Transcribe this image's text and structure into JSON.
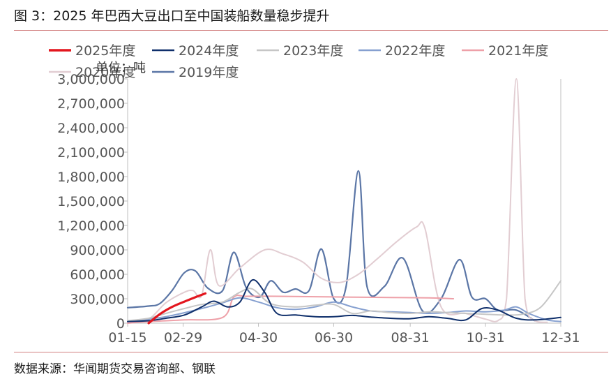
{
  "header": {
    "title": "图 3：2025 年巴西大豆出口至中国装船数量稳步提升"
  },
  "footer": {
    "source": "数据来源：华闻期货交易咨询部、钢联"
  },
  "chart_data": {
    "type": "line",
    "unit_label": "单位：吨",
    "x_ticks": [
      "01-15",
      "02-29",
      "04-30",
      "06-30",
      "08-31",
      "10-31",
      "12-31"
    ],
    "y_ticks": [
      "0",
      "300,000",
      "600,000",
      "900,000",
      "1,200,000",
      "1,500,000",
      "1,800,000",
      "2,100,000",
      "2,400,000",
      "2,700,000",
      "3,000,000"
    ],
    "ylim": [
      0,
      3000000
    ],
    "xlim": [
      "01-15",
      "12-31"
    ],
    "legend_position": "top",
    "grid": false,
    "series": [
      {
        "name": "2025年度",
        "color": "#e3161e",
        "width": 3.2,
        "points": [
          [
            "02-01",
            0
          ],
          [
            "02-10",
            110000
          ],
          [
            "02-20",
            200000
          ],
          [
            "03-01",
            265000
          ],
          [
            "03-10",
            320000
          ],
          [
            "03-18",
            365000
          ]
        ]
      },
      {
        "name": "2024年度",
        "color": "#0f2f6b",
        "width": 2,
        "points": [
          [
            "01-15",
            20000
          ],
          [
            "02-01",
            30000
          ],
          [
            "02-15",
            60000
          ],
          [
            "03-01",
            100000
          ],
          [
            "03-15",
            200000
          ],
          [
            "03-25",
            270000
          ],
          [
            "04-05",
            200000
          ],
          [
            "04-15",
            260000
          ],
          [
            "04-25",
            530000
          ],
          [
            "05-05",
            380000
          ],
          [
            "05-15",
            120000
          ],
          [
            "05-30",
            100000
          ],
          [
            "06-15",
            80000
          ],
          [
            "06-30",
            80000
          ],
          [
            "07-15",
            95000
          ],
          [
            "07-30",
            75000
          ],
          [
            "08-15",
            60000
          ],
          [
            "08-31",
            55000
          ],
          [
            "09-15",
            80000
          ],
          [
            "09-30",
            60000
          ],
          [
            "10-15",
            40000
          ],
          [
            "10-28",
            180000
          ],
          [
            "11-10",
            160000
          ],
          [
            "11-25",
            60000
          ],
          [
            "12-10",
            40000
          ],
          [
            "12-31",
            70000
          ]
        ]
      },
      {
        "name": "2023年度",
        "color": "#c6c6c6",
        "width": 2,
        "points": [
          [
            "01-15",
            30000
          ],
          [
            "02-01",
            60000
          ],
          [
            "02-15",
            120000
          ],
          [
            "03-01",
            180000
          ],
          [
            "03-15",
            230000
          ],
          [
            "04-01",
            260000
          ],
          [
            "04-15",
            380000
          ],
          [
            "04-25",
            420000
          ],
          [
            "05-10",
            240000
          ],
          [
            "05-30",
            200000
          ],
          [
            "06-15",
            220000
          ],
          [
            "06-30",
            230000
          ],
          [
            "07-15",
            120000
          ],
          [
            "07-30",
            150000
          ],
          [
            "08-15",
            130000
          ],
          [
            "08-31",
            120000
          ],
          [
            "09-15",
            140000
          ],
          [
            "09-30",
            130000
          ],
          [
            "10-15",
            120000
          ],
          [
            "10-31",
            110000
          ],
          [
            "11-15",
            100000
          ],
          [
            "11-30",
            110000
          ],
          [
            "12-15",
            200000
          ],
          [
            "12-31",
            520000
          ]
        ]
      },
      {
        "name": "2022年度",
        "color": "#86a0d0",
        "width": 2,
        "points": [
          [
            "01-15",
            20000
          ],
          [
            "02-15",
            80000
          ],
          [
            "03-15",
            180000
          ],
          [
            "04-01",
            250000
          ],
          [
            "04-15",
            310000
          ],
          [
            "04-30",
            260000
          ],
          [
            "05-15",
            190000
          ],
          [
            "05-30",
            170000
          ],
          [
            "06-15",
            200000
          ],
          [
            "06-30",
            260000
          ],
          [
            "07-15",
            200000
          ],
          [
            "07-30",
            150000
          ],
          [
            "08-15",
            140000
          ],
          [
            "08-31",
            130000
          ],
          [
            "09-15",
            120000
          ],
          [
            "09-30",
            130000
          ],
          [
            "10-15",
            150000
          ],
          [
            "10-31",
            140000
          ],
          [
            "11-15",
            160000
          ],
          [
            "11-25",
            200000
          ],
          [
            "12-05",
            120000
          ],
          [
            "12-20",
            40000
          ],
          [
            "12-31",
            20000
          ]
        ]
      },
      {
        "name": "2021年度",
        "color": "#eea0a8",
        "width": 2,
        "points": [
          [
            "01-15",
            0
          ],
          [
            "02-01",
            20000
          ],
          [
            "03-01",
            40000
          ],
          [
            "04-01",
            70000
          ],
          [
            "04-10",
            320000
          ],
          [
            "04-20",
            330000
          ],
          [
            "05-15",
            330000
          ],
          [
            "06-15",
            325000
          ],
          [
            "07-15",
            320000
          ],
          [
            "08-15",
            315000
          ],
          [
            "09-15",
            310000
          ],
          [
            "10-05",
            300000
          ]
        ]
      },
      {
        "name": "2020年度",
        "color": "#e2cdd2",
        "width": 2,
        "points": [
          [
            "01-15",
            0
          ],
          [
            "02-01",
            50000
          ],
          [
            "02-15",
            250000
          ],
          [
            "03-01",
            380000
          ],
          [
            "03-08",
            400000
          ],
          [
            "03-15",
            340000
          ],
          [
            "03-22",
            900000
          ],
          [
            "03-29",
            460000
          ],
          [
            "04-15",
            680000
          ],
          [
            "05-05",
            900000
          ],
          [
            "05-20",
            850000
          ],
          [
            "06-05",
            750000
          ],
          [
            "06-20",
            550000
          ],
          [
            "07-05",
            500000
          ],
          [
            "07-20",
            600000
          ],
          [
            "08-05",
            800000
          ],
          [
            "08-20",
            1000000
          ],
          [
            "09-05",
            1180000
          ],
          [
            "09-12",
            1160000
          ],
          [
            "09-25",
            200000
          ],
          [
            "10-15",
            120000
          ],
          [
            "10-31",
            50000
          ],
          [
            "11-10",
            30000
          ],
          [
            "11-17",
            300000
          ],
          [
            "11-25",
            3000000
          ],
          [
            "12-02",
            300000
          ],
          [
            "12-10",
            30000
          ],
          [
            "12-20",
            10000
          ]
        ]
      },
      {
        "name": "2019年度",
        "color": "#5b76a6",
        "width": 2.2,
        "points": [
          [
            "01-15",
            190000
          ],
          [
            "02-01",
            210000
          ],
          [
            "02-10",
            240000
          ],
          [
            "02-20",
            400000
          ],
          [
            "03-01",
            620000
          ],
          [
            "03-10",
            640000
          ],
          [
            "03-20",
            430000
          ],
          [
            "04-01",
            400000
          ],
          [
            "04-10",
            870000
          ],
          [
            "04-20",
            440000
          ],
          [
            "05-01",
            320000
          ],
          [
            "05-10",
            520000
          ],
          [
            "05-20",
            380000
          ],
          [
            "05-30",
            420000
          ],
          [
            "06-10",
            400000
          ],
          [
            "06-20",
            910000
          ],
          [
            "06-30",
            300000
          ],
          [
            "07-10",
            450000
          ],
          [
            "07-20",
            1870000
          ],
          [
            "07-27",
            450000
          ],
          [
            "08-10",
            450000
          ],
          [
            "08-25",
            800000
          ],
          [
            "09-10",
            150000
          ],
          [
            "09-25",
            300000
          ],
          [
            "10-10",
            780000
          ],
          [
            "10-20",
            320000
          ],
          [
            "10-31",
            300000
          ],
          [
            "11-10",
            160000
          ],
          [
            "11-25",
            160000
          ],
          [
            "12-10",
            30000
          ]
        ]
      }
    ]
  }
}
